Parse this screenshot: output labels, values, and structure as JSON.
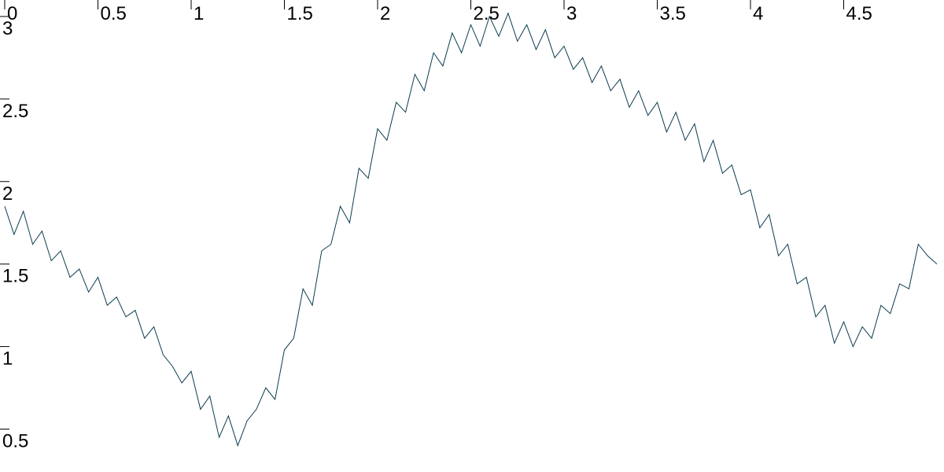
{
  "chart_data": {
    "type": "line",
    "x": [
      0,
      0.05,
      0.1,
      0.15,
      0.2,
      0.25,
      0.3,
      0.35,
      0.4,
      0.45,
      0.5,
      0.55,
      0.6,
      0.65,
      0.7,
      0.75,
      0.8,
      0.85,
      0.9,
      0.95,
      1,
      1.05,
      1.1,
      1.15,
      1.2,
      1.25,
      1.3,
      1.35,
      1.4,
      1.45,
      1.5,
      1.55,
      1.6,
      1.65,
      1.7,
      1.75,
      1.8,
      1.85,
      1.9,
      1.95,
      2,
      2.05,
      2.1,
      2.15,
      2.2,
      2.25,
      2.3,
      2.35,
      2.4,
      2.45,
      2.5,
      2.55,
      2.6,
      2.65,
      2.7,
      2.75,
      2.8,
      2.85,
      2.9,
      2.95,
      3,
      3.05,
      3.1,
      3.15,
      3.2,
      3.25,
      3.3,
      3.35,
      3.4,
      3.45,
      3.5,
      3.55,
      3.6,
      3.65,
      3.7,
      3.75,
      3.8,
      3.85,
      3.9,
      3.95,
      4,
      4.05,
      4.1,
      4.15,
      4.2,
      4.25,
      4.3,
      4.35,
      4.4,
      4.45,
      4.5,
      4.55,
      4.6,
      4.65,
      4.7,
      4.75,
      4.8,
      4.85,
      4.9,
      4.95,
      5
    ],
    "series": [
      {
        "color": "#0b3d4f",
        "values": [
          1.85,
          1.68,
          1.82,
          1.62,
          1.7,
          1.52,
          1.58,
          1.42,
          1.47,
          1.33,
          1.42,
          1.25,
          1.3,
          1.18,
          1.22,
          1.05,
          1.12,
          0.95,
          0.88,
          0.78,
          0.85,
          0.62,
          0.7,
          0.45,
          0.58,
          0.4,
          0.55,
          0.62,
          0.75,
          0.68,
          0.98,
          1.05,
          1.35,
          1.25,
          1.58,
          1.62,
          1.85,
          1.75,
          2.08,
          2.02,
          2.32,
          2.25,
          2.48,
          2.42,
          2.65,
          2.55,
          2.78,
          2.7,
          2.9,
          2.78,
          2.95,
          2.82,
          3.0,
          2.88,
          3.02,
          2.85,
          2.95,
          2.8,
          2.92,
          2.75,
          2.82,
          2.68,
          2.75,
          2.6,
          2.7,
          2.55,
          2.62,
          2.45,
          2.55,
          2.4,
          2.48,
          2.3,
          2.42,
          2.25,
          2.35,
          2.12,
          2.25,
          2.05,
          2.1,
          1.92,
          1.95,
          1.72,
          1.8,
          1.55,
          1.62,
          1.38,
          1.42,
          1.18,
          1.25,
          1.02,
          1.15,
          1.0,
          1.12,
          1.05,
          1.25,
          1.2,
          1.38,
          1.35,
          1.62,
          1.55,
          1.5
        ]
      }
    ],
    "xlim": [
      0,
      5
    ],
    "ylim": [
      0.24,
      3.1
    ],
    "xticks": [
      0,
      0.5,
      1,
      1.5,
      2,
      2.5,
      3,
      3.5,
      4,
      4.5
    ],
    "yticks": [
      0.5,
      1,
      1.5,
      2,
      2.5,
      3
    ]
  }
}
